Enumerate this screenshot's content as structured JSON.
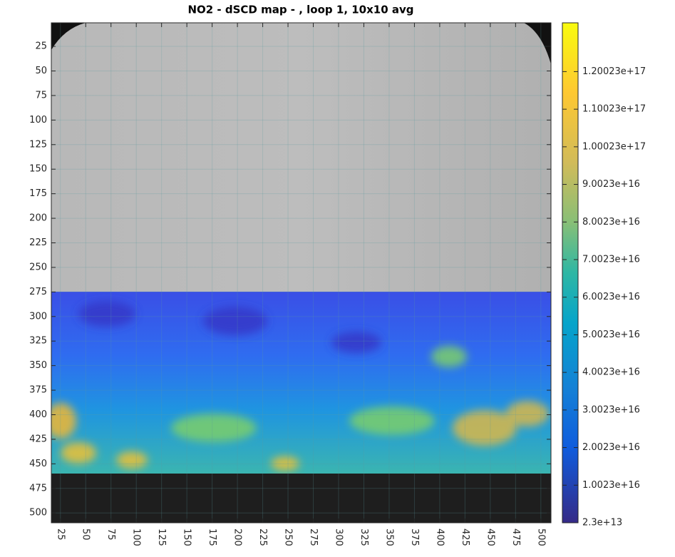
{
  "chart_data": {
    "type": "heatmap",
    "title": "NO2 - dSCD map - , loop 1, 10x10 avg",
    "xlim": [
      16,
      510
    ],
    "ylim": [
      1,
      510
    ],
    "y_direction": "reverse",
    "xticks": [
      25,
      50,
      75,
      100,
      125,
      150,
      175,
      200,
      225,
      250,
      275,
      300,
      325,
      350,
      375,
      400,
      425,
      450,
      475,
      500
    ],
    "yticks": [
      25,
      50,
      75,
      100,
      125,
      150,
      175,
      200,
      225,
      250,
      275,
      300,
      325,
      350,
      375,
      400,
      425,
      450,
      475,
      500
    ],
    "grid": true,
    "colormap": "parula",
    "clim": [
      23000000000000.0,
      1.33e+17
    ],
    "cticks": [
      {
        "value": 23000000000000.0,
        "label": "2.3e+13"
      },
      {
        "value": 1.0023e+16,
        "label": "1.0023e+16"
      },
      {
        "value": 2.0023e+16,
        "label": "2.0023e+16"
      },
      {
        "value": 3.0023e+16,
        "label": "3.0023e+16"
      },
      {
        "value": 4.0023e+16,
        "label": "4.0023e+16"
      },
      {
        "value": 5.0023e+16,
        "label": "5.0023e+16"
      },
      {
        "value": 6.0023e+16,
        "label": "6.0023e+16"
      },
      {
        "value": 7.0023e+16,
        "label": "7.0023e+16"
      },
      {
        "value": 8.0023e+16,
        "label": "8.0023e+16"
      },
      {
        "value": 9.0023e+16,
        "label": "9.0023e+16"
      },
      {
        "value": 1.00023e+17,
        "label": "1.00023e+17"
      },
      {
        "value": 1.10023e+17,
        "label": "1.10023e+17"
      },
      {
        "value": 1.20023e+17,
        "label": "1.20023e+17"
      }
    ]
  }
}
